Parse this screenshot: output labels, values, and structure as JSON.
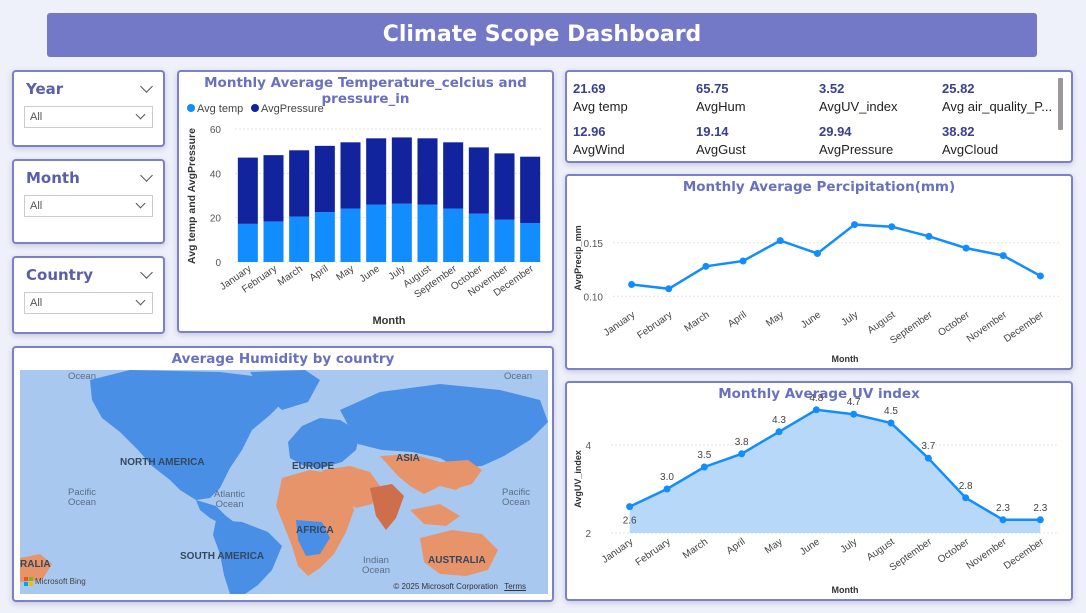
{
  "header": {
    "title": "Climate Scope Dashboard"
  },
  "slicers": [
    {
      "label": "Year",
      "value": "All"
    },
    {
      "label": "Month",
      "value": "All"
    },
    {
      "label": "Country",
      "value": "All"
    }
  ],
  "temp_chart": {
    "title": "Monthly Average Temperature_celcius and pressure_in",
    "legend": [
      "Avg temp",
      "AvgPressure"
    ],
    "ylabel": "Avg temp and AvgPressure",
    "xlabel": "Month"
  },
  "kpis": [
    {
      "value": "21.69",
      "label": "Avg temp"
    },
    {
      "value": "65.75",
      "label": "AvgHum"
    },
    {
      "value": "3.52",
      "label": "AvgUV_index"
    },
    {
      "value": "25.82",
      "label": "Avg air_quality_P..."
    },
    {
      "value": "12.96",
      "label": "AvgWind"
    },
    {
      "value": "19.14",
      "label": "AvgGust"
    },
    {
      "value": "29.94",
      "label": "AvgPressure"
    },
    {
      "value": "38.82",
      "label": "AvgCloud"
    }
  ],
  "precip_chart": {
    "title": "Monthly Average Percipitation(mm)",
    "ylabel": "AvgPrecip_mm",
    "xlabel": "Month"
  },
  "uv_chart": {
    "title": "Monthly Average UV index",
    "ylabel": "AvgUV_index",
    "xlabel": "Month"
  },
  "map": {
    "title": "Average Humidity by country",
    "labels": {
      "ocean_tl": "Ocean",
      "ocean_tr": "Ocean",
      "north_america": "NORTH AMERICA",
      "europe": "EUROPE",
      "asia": "ASIA",
      "africa": "AFRICA",
      "south_america": "SOUTH AMERICA",
      "australia": "AUSTRALIA",
      "australia_left": "RALIA",
      "pacific_left": "Pacific\nOcean",
      "pacific_right": "Pacific\nOcean",
      "atlantic": "Atlantic\nOcean",
      "indian": "Indian\nOcean",
      "bing": "Microsoft Bing",
      "copyright": "© 2025 Microsoft Corporation",
      "terms": "Terms"
    },
    "colors": {
      "water": "#a9c8ef",
      "land_blue": "#4a8fe6",
      "land_orange": "#e8946a"
    }
  },
  "chart_data": [
    {
      "type": "bar",
      "stacked": true,
      "categories": [
        "January",
        "February",
        "March",
        "April",
        "May",
        "June",
        "July",
        "August",
        "September",
        "October",
        "November",
        "December"
      ],
      "series": [
        {
          "name": "Avg temp",
          "color": "#118dff",
          "values": [
            17.2,
            18.3,
            20.5,
            22.5,
            24.1,
            25.9,
            26.3,
            25.9,
            24.1,
            21.8,
            19.1,
            17.6
          ]
        },
        {
          "name": "AvgPressure",
          "color": "#12239e",
          "values": [
            29.9,
            29.9,
            29.9,
            29.9,
            29.9,
            29.9,
            29.9,
            29.9,
            29.9,
            29.9,
            29.9,
            29.9
          ]
        }
      ],
      "ylabel": "Avg temp and AvgPressure",
      "xlabel": "Month",
      "ylim": [
        0,
        60
      ],
      "yticks": [
        0,
        20,
        40,
        60
      ],
      "legend": "top-left"
    },
    {
      "type": "line",
      "categories": [
        "January",
        "February",
        "March",
        "April",
        "May",
        "June",
        "July",
        "August",
        "September",
        "October",
        "November",
        "December"
      ],
      "values": [
        0.111,
        0.107,
        0.128,
        0.133,
        0.152,
        0.14,
        0.167,
        0.165,
        0.156,
        0.145,
        0.138,
        0.119
      ],
      "ylabel": "AvgPrecip_mm",
      "xlabel": "Month",
      "ylim": [
        0.09,
        0.175
      ],
      "yticks": [
        0.1,
        0.15
      ],
      "ytick_labels": [
        "0.10",
        "0.15"
      ]
    },
    {
      "type": "area",
      "categories": [
        "January",
        "February",
        "March",
        "April",
        "May",
        "June",
        "July",
        "August",
        "September",
        "October",
        "November",
        "December"
      ],
      "values": [
        2.6,
        3.0,
        3.5,
        3.8,
        4.3,
        4.8,
        4.7,
        4.5,
        3.7,
        2.8,
        2.3,
        2.3
      ],
      "data_labels": [
        "2.6",
        "3.0",
        "3.5",
        "3.8",
        "4.3",
        "4.8",
        "4.7",
        "4.5",
        "3.7",
        "2.8",
        "2.3",
        "2.3"
      ],
      "ylabel": "AvgUV_index",
      "xlabel": "Month",
      "ylim": [
        2,
        5
      ],
      "yticks": [
        2,
        4
      ]
    }
  ]
}
